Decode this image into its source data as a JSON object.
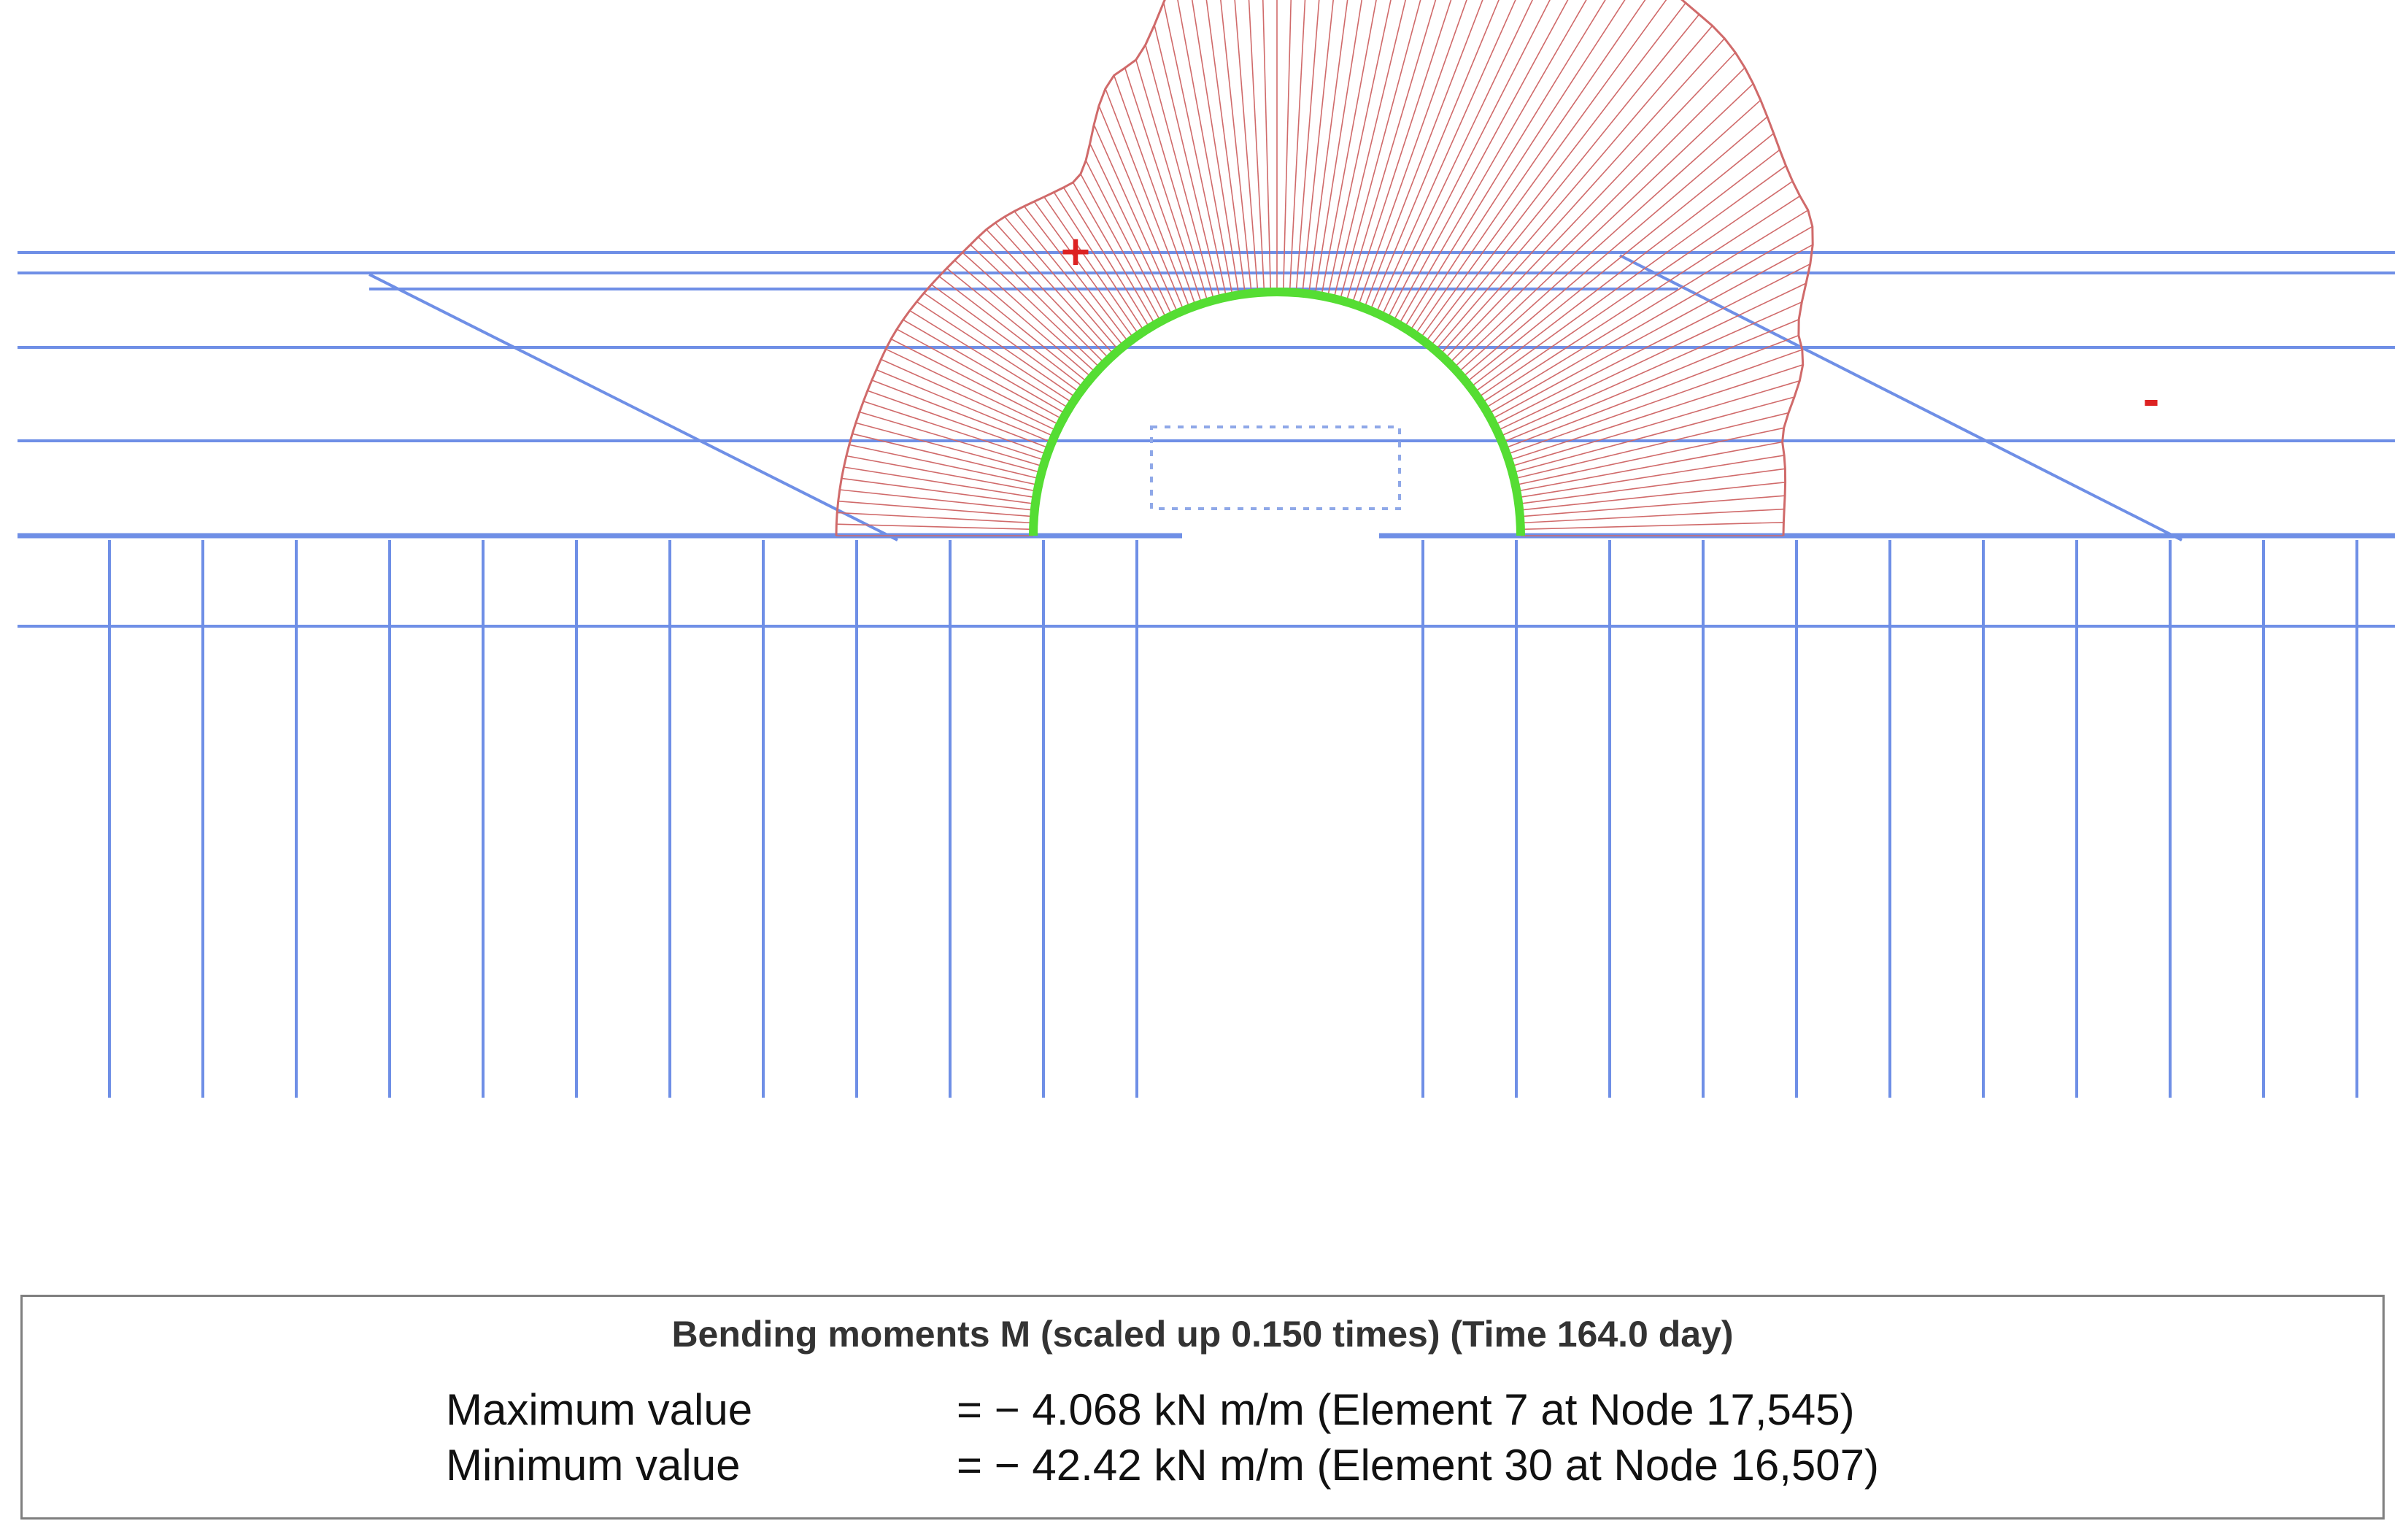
{
  "signs": {
    "positive": "+",
    "negative": "-"
  },
  "colors": {
    "structure": "#6f8fe6",
    "moment": "#d06a6a",
    "lining": "#55dd33",
    "sign": "#dd2222",
    "dashed_box": "#8fa8e8"
  },
  "legend": {
    "title": "Bending moments M (scaled up 0.150 times) (Time 164.0 day)",
    "max_label": "Maximum value",
    "max_value": "= − 4.068 kN m/m (Element 7 at Node 17,545)",
    "min_label": "Minimum value",
    "min_value": "= − 42.42 kN m/m (Element 30 at Node 16,507)"
  }
}
